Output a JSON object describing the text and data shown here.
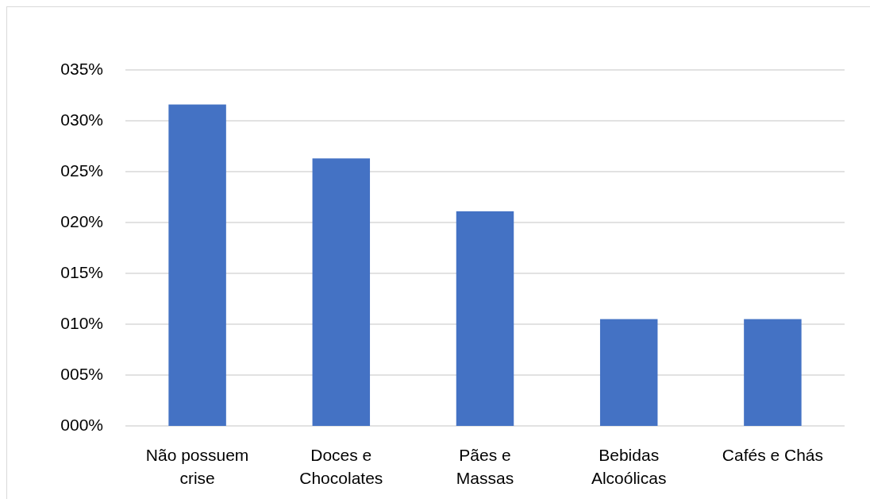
{
  "chart_data": {
    "type": "bar",
    "categories": [
      "Não possuem crise",
      "Doces e Chocolates",
      "Pães e Massas",
      "Bebidas Alcoólicas",
      "Cafés e Chás"
    ],
    "values": [
      31.6,
      26.3,
      21.1,
      10.5,
      10.5
    ],
    "color": "#4472c4",
    "ylim": [
      0,
      35
    ],
    "yticks": [
      {
        "value": 0,
        "label": "000%"
      },
      {
        "value": 5,
        "label": "005%"
      },
      {
        "value": 10,
        "label": "010%"
      },
      {
        "value": 15,
        "label": "015%"
      },
      {
        "value": 20,
        "label": "020%"
      },
      {
        "value": 25,
        "label": "025%"
      },
      {
        "value": 30,
        "label": "030%"
      },
      {
        "value": 35,
        "label": "035%"
      }
    ],
    "grid": "y"
  }
}
